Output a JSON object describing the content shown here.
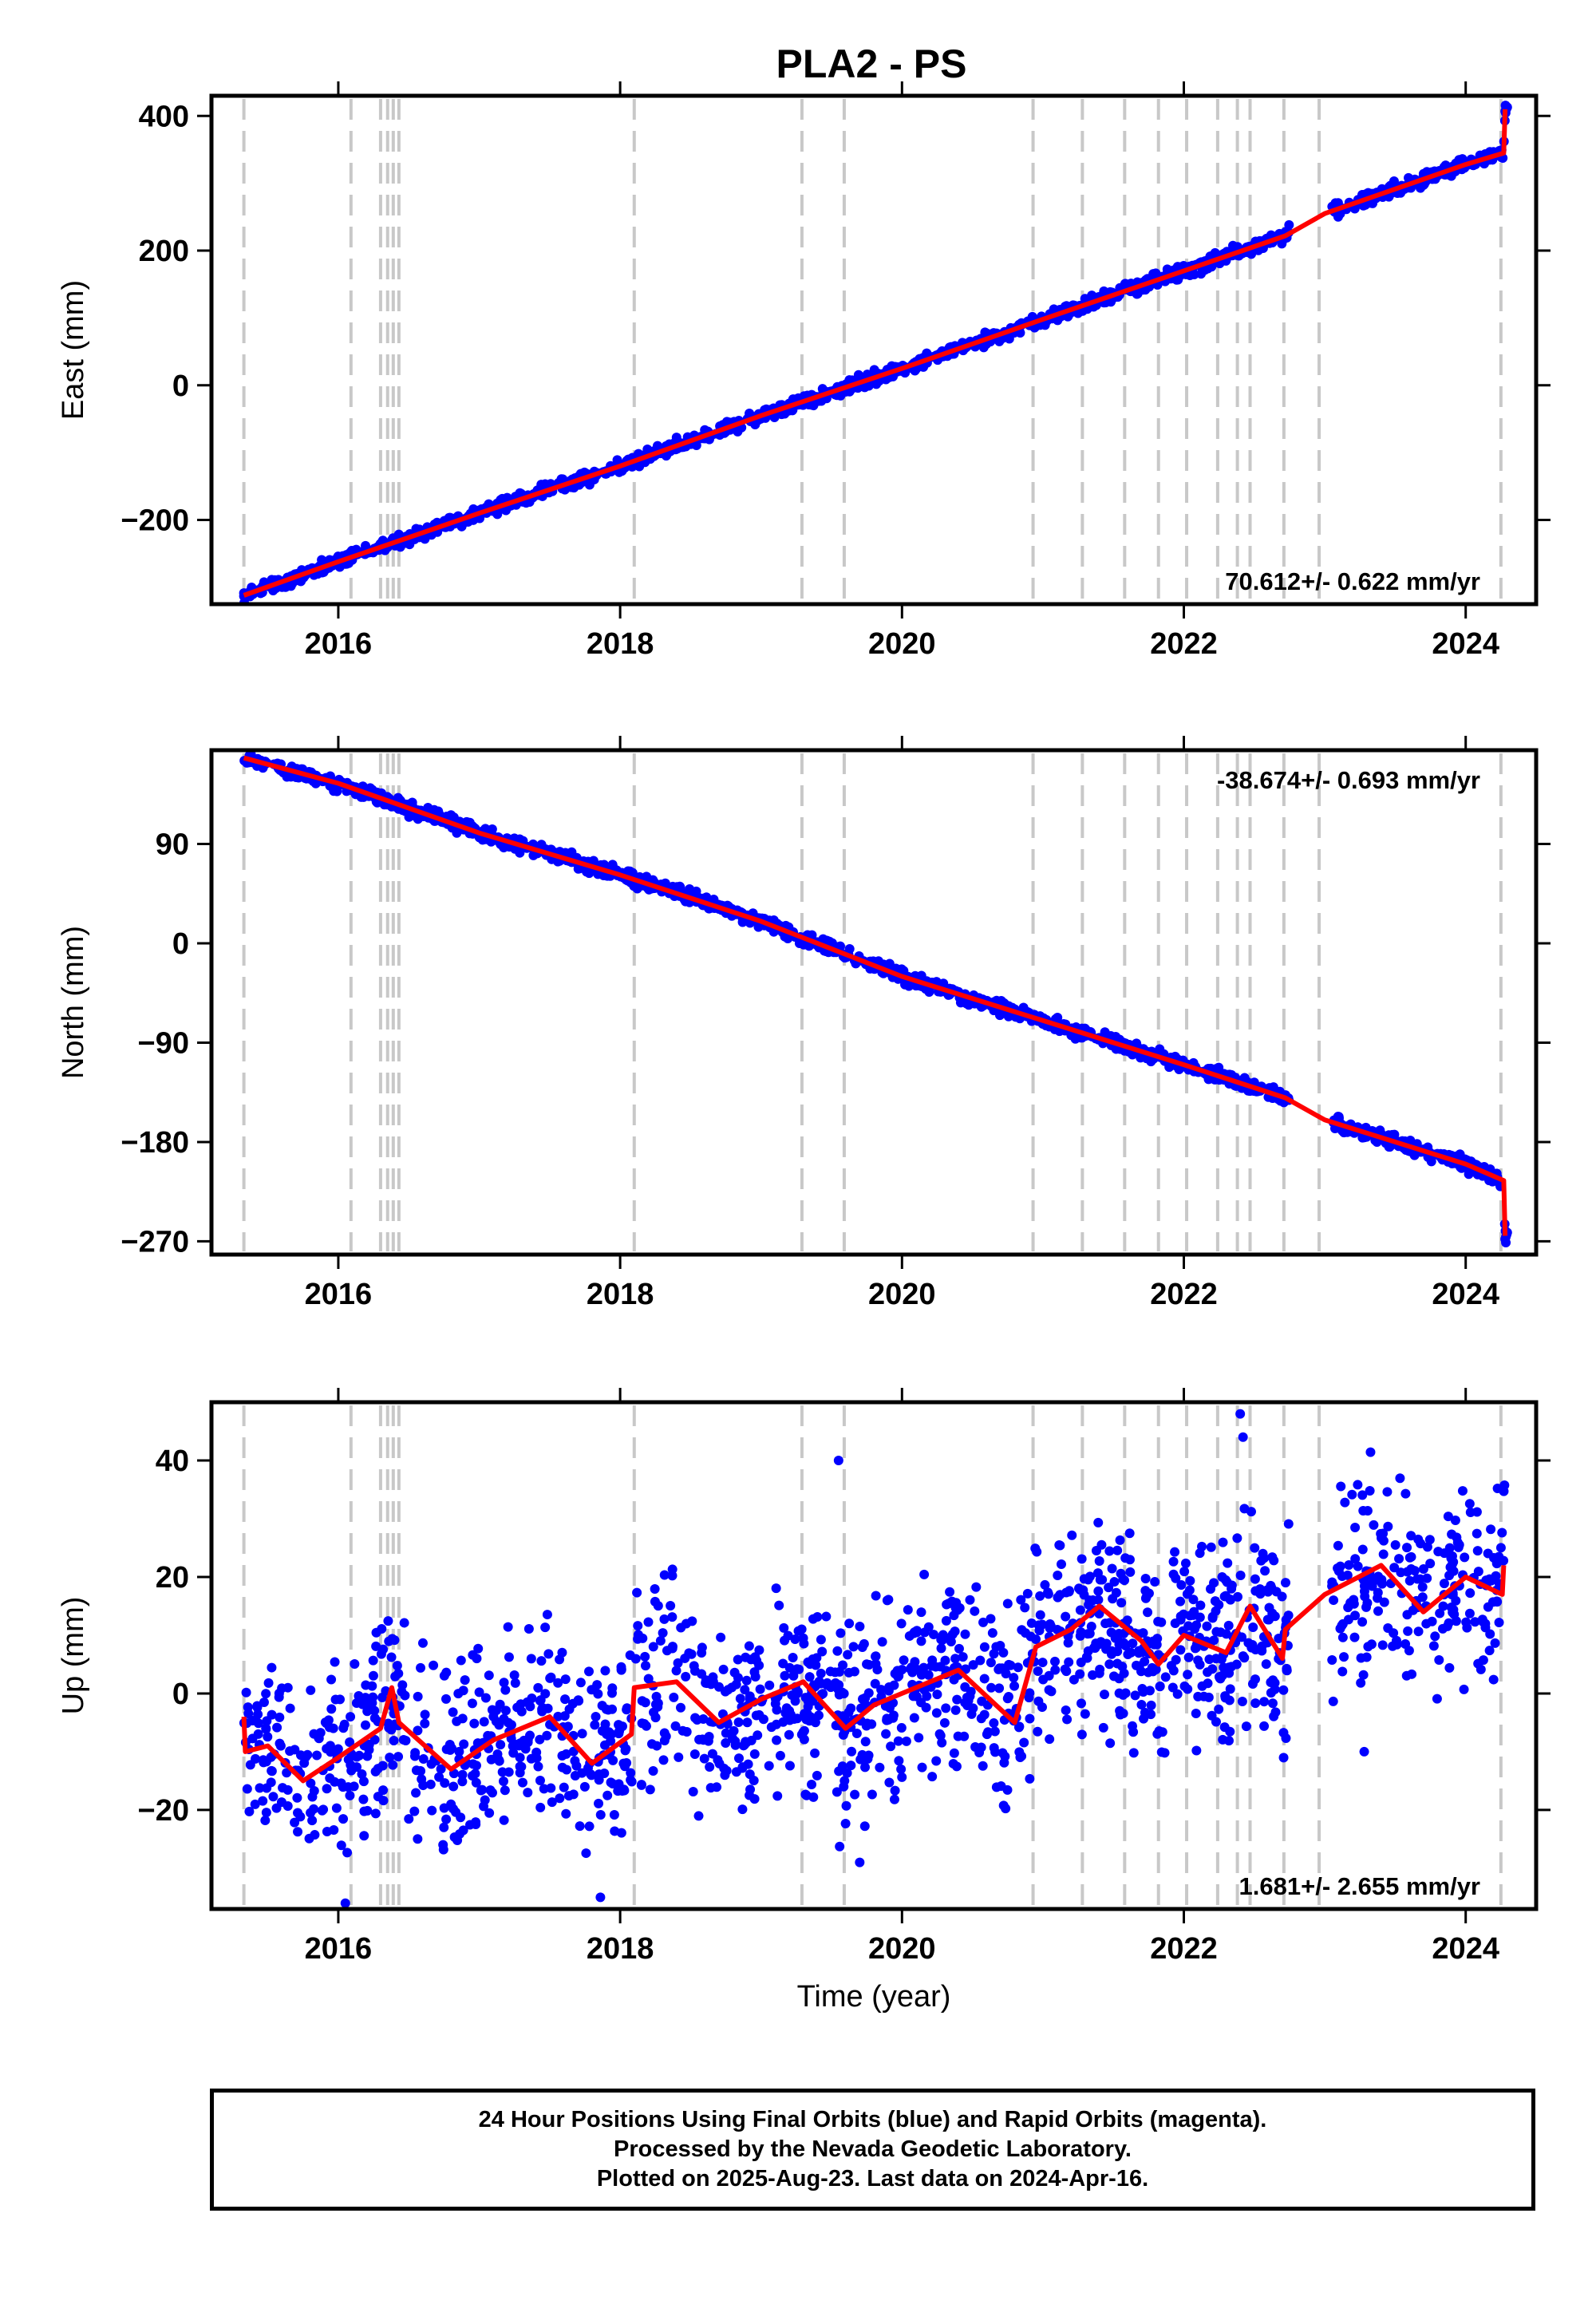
{
  "title": "PLA2 - PS",
  "colors": {
    "final": "#0000ff",
    "rapid": "#ff00ff",
    "model": "#ff0000",
    "steps": "#c8c8c8",
    "axes": "#000000"
  },
  "x_label": "Time (year)",
  "x_ticks": [
    2016,
    2018,
    2020,
    2022,
    2024
  ],
  "x_range": [
    2015.1,
    2024.5
  ],
  "step_epochs": [
    2015.33,
    2016.09,
    2016.3,
    2016.35,
    2016.39,
    2016.43,
    2018.1,
    2019.29,
    2019.59,
    2020.93,
    2021.28,
    2021.58,
    2021.82,
    2022.02,
    2022.24,
    2022.38,
    2022.47,
    2022.71,
    2022.96,
    2024.25
  ],
  "caption": {
    "line1": "24 Hour Positions Using Final Orbits (blue) and Rapid Orbits (magenta).",
    "line2": "Processed by the Nevada Geodetic Laboratory.",
    "line3": "Plotted on 2025-Aug-23. Last data on 2024-Apr-16."
  },
  "chart_data": [
    {
      "type": "scatter",
      "name": "East",
      "ylabel": "East (mm)",
      "yticks": [
        -200,
        0,
        200,
        400
      ],
      "ylim": [
        -325,
        430
      ],
      "rate": "70.612+/- 0.622 mm/yr",
      "rate_position": "bottom-right",
      "trend_points": [
        [
          2015.33,
          -312
        ],
        [
          2016.0,
          -262
        ],
        [
          2017.0,
          -190
        ],
        [
          2018.0,
          -120
        ],
        [
          2019.0,
          -45
        ],
        [
          2020.0,
          25
        ],
        [
          2021.0,
          98
        ],
        [
          2022.0,
          170
        ],
        [
          2022.72,
          222
        ],
        [
          2023.0,
          255
        ],
        [
          2024.0,
          328
        ],
        [
          2024.27,
          345
        ],
        [
          2024.28,
          410
        ]
      ],
      "noise_mm": 5,
      "n_points": 1500
    },
    {
      "type": "scatter",
      "name": "North",
      "ylabel": "North (mm)",
      "yticks": [
        -270,
        -180,
        -90,
        0,
        90
      ],
      "ylim": [
        -282,
        175
      ],
      "rate": "-38.674+/- 0.693 mm/yr",
      "rate_position": "top-right",
      "trend_points": [
        [
          2015.33,
          168
        ],
        [
          2016.0,
          145
        ],
        [
          2017.0,
          100
        ],
        [
          2018.0,
          62
        ],
        [
          2019.0,
          20
        ],
        [
          2020.0,
          -30
        ],
        [
          2021.0,
          -70
        ],
        [
          2022.0,
          -110
        ],
        [
          2022.72,
          -140
        ],
        [
          2023.0,
          -160
        ],
        [
          2024.0,
          -200
        ],
        [
          2024.27,
          -215
        ],
        [
          2024.28,
          -265
        ]
      ],
      "noise_mm": 3,
      "n_points": 1500
    },
    {
      "type": "scatter",
      "name": "Up",
      "ylabel": "Up (mm)",
      "yticks": [
        -20,
        0,
        20,
        40
      ],
      "ylim": [
        -37,
        50
      ],
      "rate": "1.681+/- 2.655 mm/yr",
      "rate_position": "bottom-right",
      "trend_points": [
        [
          2015.33,
          -4
        ],
        [
          2015.34,
          -10
        ],
        [
          2015.5,
          -9
        ],
        [
          2015.75,
          -15
        ],
        [
          2016.0,
          -11
        ],
        [
          2016.3,
          -6
        ],
        [
          2016.38,
          1
        ],
        [
          2016.43,
          -5
        ],
        [
          2016.8,
          -13
        ],
        [
          2017.1,
          -8
        ],
        [
          2017.5,
          -4
        ],
        [
          2017.8,
          -12
        ],
        [
          2018.08,
          -7
        ],
        [
          2018.1,
          1
        ],
        [
          2018.4,
          2
        ],
        [
          2018.7,
          -5
        ],
        [
          2019.0,
          -1
        ],
        [
          2019.3,
          2
        ],
        [
          2019.6,
          -6
        ],
        [
          2019.8,
          -2
        ],
        [
          2020.0,
          0
        ],
        [
          2020.4,
          4
        ],
        [
          2020.8,
          -5
        ],
        [
          2020.95,
          8
        ],
        [
          2021.2,
          11
        ],
        [
          2021.4,
          15
        ],
        [
          2021.7,
          9
        ],
        [
          2021.82,
          5
        ],
        [
          2022.0,
          10
        ],
        [
          2022.3,
          7
        ],
        [
          2022.47,
          15
        ],
        [
          2022.7,
          6
        ],
        [
          2022.72,
          11
        ],
        [
          2023.0,
          17
        ],
        [
          2023.4,
          22
        ],
        [
          2023.7,
          14
        ],
        [
          2024.0,
          20
        ],
        [
          2024.26,
          17
        ],
        [
          2024.27,
          22
        ]
      ],
      "noise_mm": 8,
      "n_points": 1700,
      "outliers": [
        [
          2016.05,
          -36
        ],
        [
          2017.86,
          -35
        ],
        [
          2019.55,
          40
        ],
        [
          2019.7,
          -29
        ],
        [
          2022.4,
          48
        ],
        [
          2022.42,
          44
        ],
        [
          2023.28,
          -10
        ]
      ]
    }
  ]
}
